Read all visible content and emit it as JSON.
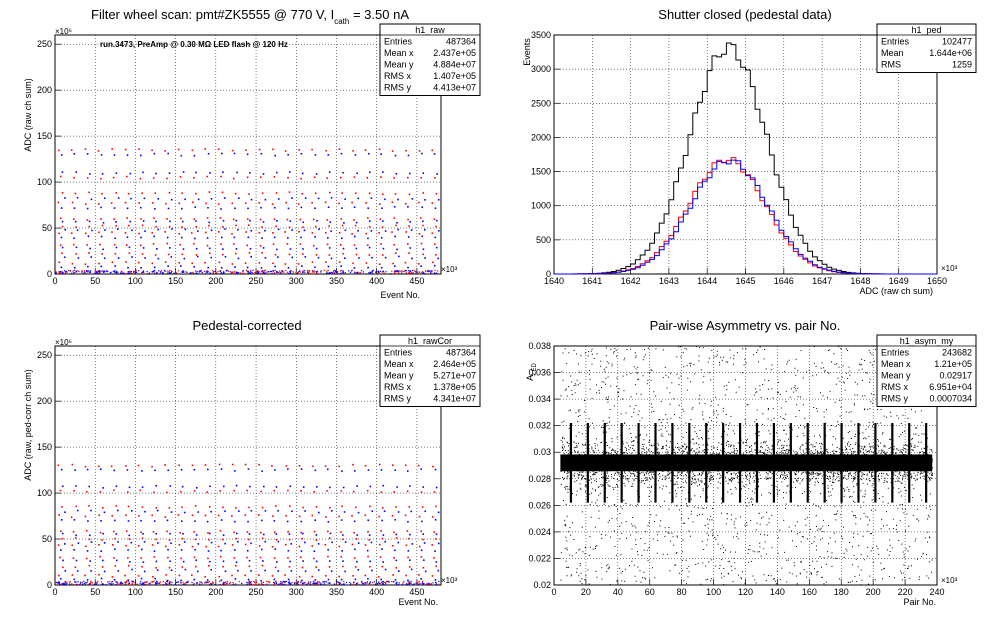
{
  "chart_data": [
    {
      "type": "scatter",
      "title_main": "Filter wheel scan: pmt#ZK5555 @   770 V, I",
      "title_sub": "cath",
      "title_tail": " = 3.50 nA",
      "annotation": "run.3473, PreAmp @ 0.30 MΩ LED flash @  120 Hz",
      "xlabel": "Event No.",
      "ylabel": "ADC (raw ch sum)",
      "x_exponent": "×10³",
      "y_exponent": "×10⁶",
      "xlim": [
        0,
        480
      ],
      "ylim": [
        0,
        260
      ],
      "xticks": [
        "0",
        "50",
        "100",
        "150",
        "200",
        "250",
        "300",
        "350",
        "400",
        "450"
      ],
      "yticks": [
        "0",
        "50",
        "100",
        "150",
        "200",
        "250"
      ],
      "grid": true,
      "legend_box": "top-right",
      "stats": {
        "name": "h1_raw",
        "rows": [
          [
            "Entries",
            "487364"
          ],
          [
            "Mean x",
            "2.437e+05"
          ],
          [
            "Mean y",
            "4.884e+07"
          ],
          [
            "RMS x",
            "1.407e+05"
          ],
          [
            "RMS y",
            "4.413e+07"
          ]
        ]
      },
      "series": [
        {
          "color": "#ff0000",
          "levels": [
            135,
            105,
            88,
            77,
            60,
            52,
            45,
            32,
            22,
            12
          ]
        },
        {
          "color": "#0000ff",
          "levels": [
            130,
            110,
            82,
            72,
            57,
            48,
            40,
            28,
            18,
            8,
            2
          ]
        }
      ]
    },
    {
      "type": "histogram",
      "title": "Shutter closed (pedestal data)",
      "xlabel": "ADC (raw ch sum)",
      "ylabel": "Events",
      "x_exponent": "×10³",
      "xlim": [
        1640,
        1650
      ],
      "ylim": [
        0,
        3500
      ],
      "xticks": [
        "1640",
        "1641",
        "1642",
        "1643",
        "1644",
        "1645",
        "1646",
        "1647",
        "1648",
        "1649",
        "1650"
      ],
      "yticks": [
        "0",
        "500",
        "1000",
        "1500",
        "2000",
        "2500",
        "3000",
        "3500"
      ],
      "grid": true,
      "legend_box": "top-right",
      "stats": {
        "name": "h1_ped",
        "rows": [
          [
            "Entries",
            "102477"
          ],
          [
            "Mean",
            "1.644e+06"
          ],
          [
            "RMS",
            "1259"
          ]
        ]
      },
      "series": [
        {
          "color": "#000000",
          "mean": 1644.55,
          "sigma": 1.0,
          "peak": 3320
        },
        {
          "color": "#ff0000",
          "mean": 1644.52,
          "sigma": 1.0,
          "peak": 1680
        },
        {
          "color": "#0000ff",
          "mean": 1644.58,
          "sigma": 1.0,
          "peak": 1660
        }
      ]
    },
    {
      "type": "scatter",
      "title": "Pedestal-corrected",
      "xlabel": "Event No.",
      "ylabel": "ADC (raw, ped-corr ch sum)",
      "x_exponent": "×10³",
      "y_exponent": "×10⁶",
      "xlim": [
        0,
        480
      ],
      "ylim": [
        0,
        260
      ],
      "xticks": [
        "0",
        "50",
        "100",
        "150",
        "200",
        "250",
        "300",
        "350",
        "400",
        "450"
      ],
      "yticks": [
        "0",
        "50",
        "100",
        "150",
        "200",
        "250"
      ],
      "grid": true,
      "legend_box": "top-right",
      "stats": {
        "name": "h1_rawCor",
        "rows": [
          [
            "Entries",
            "487364"
          ],
          [
            "Mean x",
            "2.464e+05"
          ],
          [
            "Mean y",
            "5.271e+07"
          ],
          [
            "RMS x",
            "1.378e+05"
          ],
          [
            "RMS y",
            "4.341e+07"
          ]
        ]
      },
      "series": [
        {
          "color": "#ff0000",
          "levels": [
            130,
            102,
            85,
            75,
            58,
            50,
            43,
            30,
            20,
            10
          ]
        },
        {
          "color": "#0000ff",
          "levels": [
            125,
            107,
            80,
            70,
            55,
            46,
            38,
            26,
            16,
            6,
            1
          ]
        }
      ]
    },
    {
      "type": "scatter",
      "title": "Pair-wise Asymmetry vs. pair No.",
      "xlabel": "Pair No.",
      "ylabel": "A",
      "ylabel_sub": "LED",
      "x_exponent": "×10³",
      "xlim": [
        0,
        240
      ],
      "ylim": [
        0.02,
        0.038
      ],
      "xticks": [
        "0",
        "20",
        "40",
        "60",
        "80",
        "100",
        "120",
        "140",
        "160",
        "180",
        "200",
        "220",
        "240"
      ],
      "yticks": [
        "0.02",
        "0.022",
        "0.024",
        "0.026",
        "0.028",
        "0.03",
        "0.032",
        "0.034",
        "0.036",
        "0.038"
      ],
      "grid": true,
      "legend_box": "top-right",
      "stats": {
        "name": "h1_asym_my",
        "rows": [
          [
            "Entries",
            "243682"
          ],
          [
            "Mean x",
            "1.21e+05"
          ],
          [
            "Mean y",
            "0.02917"
          ],
          [
            "RMS x",
            "6.951e+04"
          ],
          [
            "RMS y",
            "0.0007034"
          ]
        ]
      },
      "band": {
        "center": 0.0292,
        "halfwidth": 0.0009,
        "spike_every": 10.6,
        "spike_top": 0.0322,
        "spike_bottom": 0.0262
      }
    }
  ]
}
